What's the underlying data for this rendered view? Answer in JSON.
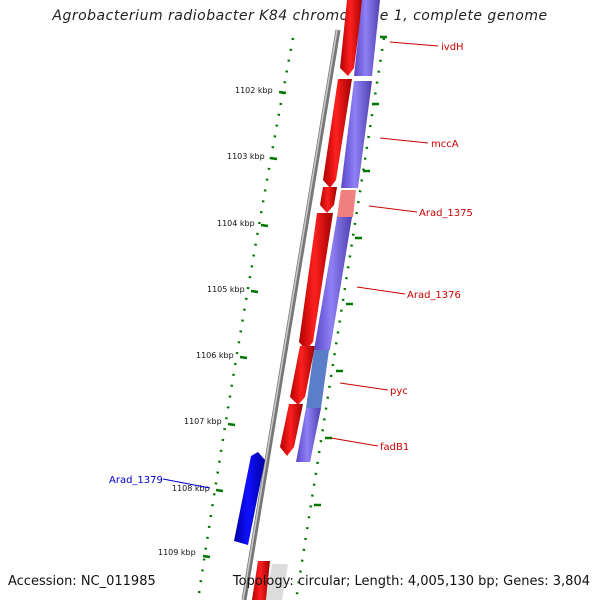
{
  "title": "Agrobacterium radiobacter K84 chromosome 1, complete genome",
  "accession": "Accession: NC_011985",
  "topology": "Topology: circular; Length: 4,005,130 bp; Genes: 3,804",
  "colors": {
    "forward_gene": "#ff0000",
    "reverse_gene": "#7b68ee",
    "other_gene": "#0000ff",
    "ruler": "#007700",
    "backbone": "#777777",
    "label_red": "#cc0000",
    "label_blue": "#0000cc"
  },
  "ruler_labels": [
    "1102 kbp",
    "1103 kbp",
    "1104 kbp",
    "1105 kbp",
    "1106 kbp",
    "1107 kbp",
    "1108 kbp",
    "1109 kbp"
  ],
  "gene_labels": [
    "ivdH",
    "mccA",
    "Arad_1375",
    "Arad_1376",
    "pyc",
    "fadB1",
    "Arad_1379"
  ]
}
